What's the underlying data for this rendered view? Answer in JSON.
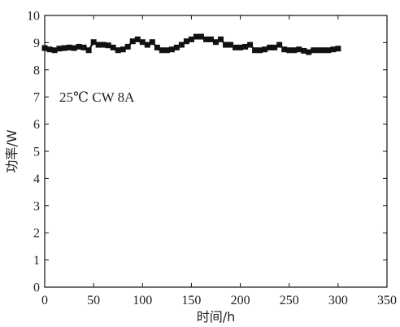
{
  "chart_data": {
    "type": "line",
    "xlabel": "时间/h",
    "ylabel": "功率/W",
    "xlim": [
      0,
      350
    ],
    "ylim": [
      0,
      10
    ],
    "xticks": [
      0,
      50,
      100,
      150,
      200,
      250,
      300,
      350
    ],
    "yticks": [
      0,
      1,
      2,
      3,
      4,
      5,
      6,
      7,
      8,
      9,
      10
    ],
    "annotation": "25℃ CW 8A",
    "grid": false,
    "legend": "none",
    "marker": "square",
    "color": "#111111",
    "series": [
      {
        "x": [
          0,
          5,
          10,
          15,
          20,
          25,
          30,
          35,
          40,
          45,
          50,
          55,
          60,
          65,
          70,
          75,
          80,
          85,
          90,
          95,
          100,
          105,
          110,
          115,
          120,
          125,
          130,
          135,
          140,
          145,
          150,
          155,
          160,
          165,
          170,
          175,
          180,
          185,
          190,
          195,
          200,
          205,
          210,
          215,
          220,
          225,
          230,
          235,
          240,
          245,
          250,
          255,
          260,
          265,
          270,
          275,
          280,
          285,
          290,
          295,
          300
        ],
        "y": [
          8.8,
          8.75,
          8.72,
          8.78,
          8.8,
          8.82,
          8.8,
          8.85,
          8.82,
          8.72,
          9.02,
          8.92,
          8.92,
          8.9,
          8.82,
          8.72,
          8.75,
          8.85,
          9.05,
          9.12,
          9.02,
          8.92,
          9.02,
          8.82,
          8.72,
          8.72,
          8.75,
          8.82,
          8.92,
          9.05,
          9.12,
          9.22,
          9.22,
          9.12,
          9.12,
          9.02,
          9.12,
          8.92,
          8.92,
          8.82,
          8.82,
          8.85,
          8.92,
          8.72,
          8.72,
          8.75,
          8.82,
          8.82,
          8.92,
          8.75,
          8.72,
          8.72,
          8.75,
          8.7,
          8.65,
          8.72,
          8.72,
          8.72,
          8.72,
          8.75,
          8.78
        ]
      }
    ]
  }
}
